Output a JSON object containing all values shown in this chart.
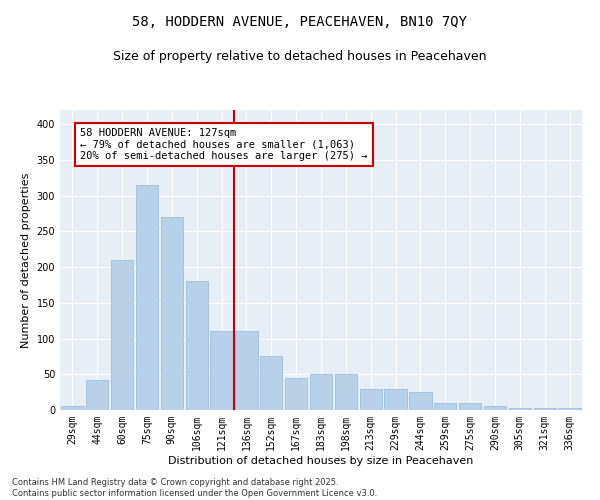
{
  "title_line1": "58, HODDERN AVENUE, PEACEHAVEN, BN10 7QY",
  "title_line2": "Size of property relative to detached houses in Peacehaven",
  "xlabel": "Distribution of detached houses by size in Peacehaven",
  "ylabel": "Number of detached properties",
  "categories": [
    "29sqm",
    "44sqm",
    "60sqm",
    "75sqm",
    "90sqm",
    "106sqm",
    "121sqm",
    "136sqm",
    "152sqm",
    "167sqm",
    "183sqm",
    "198sqm",
    "213sqm",
    "229sqm",
    "244sqm",
    "259sqm",
    "275sqm",
    "290sqm",
    "305sqm",
    "321sqm",
    "336sqm"
  ],
  "values": [
    5,
    42,
    210,
    315,
    270,
    180,
    110,
    110,
    75,
    45,
    50,
    50,
    30,
    30,
    25,
    10,
    10,
    5,
    3,
    3,
    3
  ],
  "bar_color": "#b8d0e8",
  "bar_edge_color": "#90b8d8",
  "vline_color": "#cc0000",
  "vline_pos": 6.5,
  "annotation_text": "58 HODDERN AVENUE: 127sqm\n← 79% of detached houses are smaller (1,063)\n20% of semi-detached houses are larger (275) →",
  "annotation_box_facecolor": "#ffffff",
  "annotation_box_edgecolor": "#cc0000",
  "ylim": [
    0,
    420
  ],
  "yticks": [
    0,
    50,
    100,
    150,
    200,
    250,
    300,
    350,
    400
  ],
  "bg_color": "#e8eef5",
  "grid_color": "#ffffff",
  "footer_text": "Contains HM Land Registry data © Crown copyright and database right 2025.\nContains public sector information licensed under the Open Government Licence v3.0.",
  "title_fontsize": 10,
  "subtitle_fontsize": 9,
  "axis_label_fontsize": 8,
  "tick_fontsize": 7,
  "annotation_fontsize": 7.5,
  "footer_fontsize": 6
}
